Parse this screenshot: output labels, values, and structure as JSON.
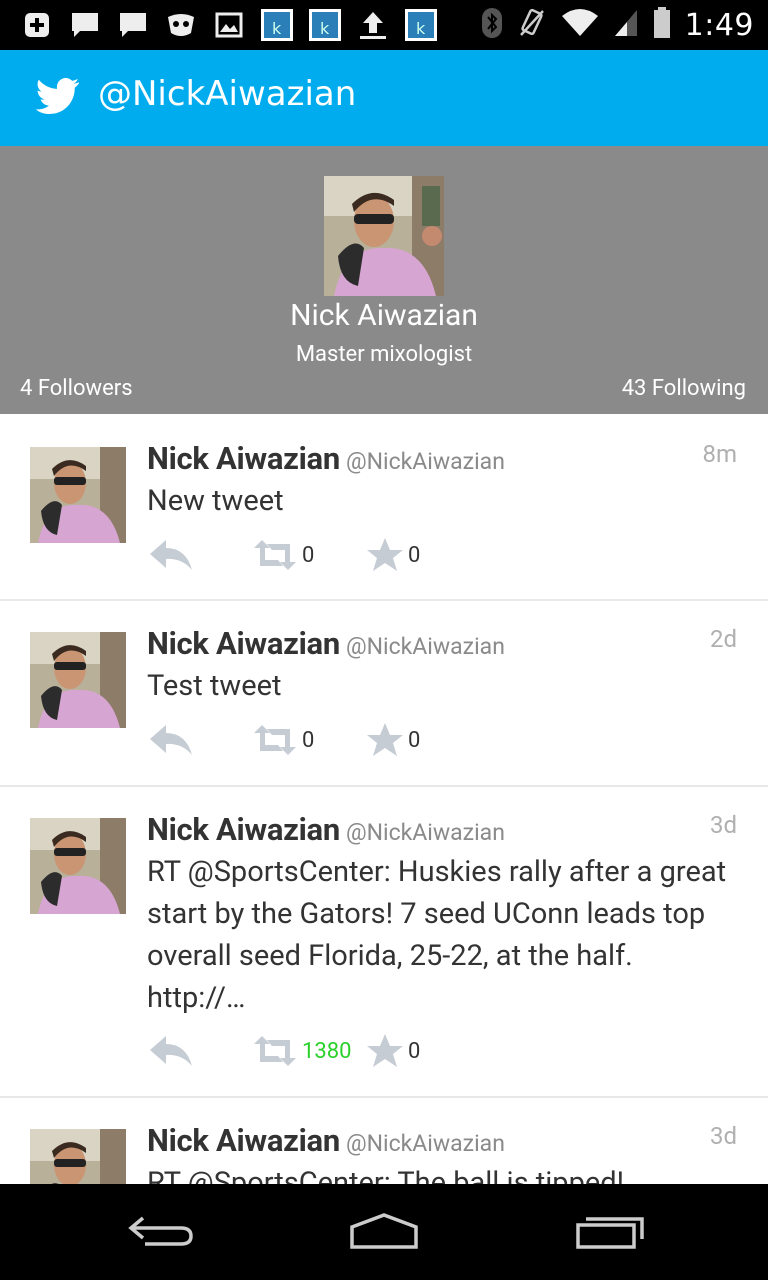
{
  "status_bar": {
    "time": "1:49",
    "icons": [
      "add-icon",
      "chat-icon",
      "chat-icon",
      "ninja-icon",
      "image-icon",
      "app-icon",
      "app-icon",
      "upload-icon",
      "app-icon",
      "bluetooth-icon",
      "vibrate-icon",
      "wifi-icon",
      "signal-icon",
      "battery-icon"
    ]
  },
  "header": {
    "title": "@NickAiwazian"
  },
  "profile": {
    "name": "Nick Aiwazian",
    "bio": "Master mixologist",
    "followers": "4 Followers",
    "following": "43 Following"
  },
  "tweets": [
    {
      "name": "Nick Aiwazian",
      "handle": "@NickAiwazian",
      "time": "8m",
      "text": "New tweet",
      "retweets": "0",
      "favorites": "0"
    },
    {
      "name": "Nick Aiwazian",
      "handle": "@NickAiwazian",
      "time": "2d",
      "text": "Test tweet",
      "retweets": "0",
      "favorites": "0"
    },
    {
      "name": "Nick Aiwazian",
      "handle": "@NickAiwazian",
      "time": "3d",
      "text": "RT @SportsCenter: Huskies rally after a great start by the Gators! 7 seed UConn leads top overall seed Florida, 25-22, at the half. http://…",
      "retweets": "1380",
      "favorites": "0"
    },
    {
      "name": "Nick Aiwazian",
      "handle": "@NickAiwazian",
      "time": "3d",
      "text": "RT @SportsCenter: The ball is tipped!"
    }
  ],
  "colors": {
    "accent": "#00aced",
    "header_bg": "#8a8a8a",
    "retweet_highlight": "#2bd12b"
  }
}
